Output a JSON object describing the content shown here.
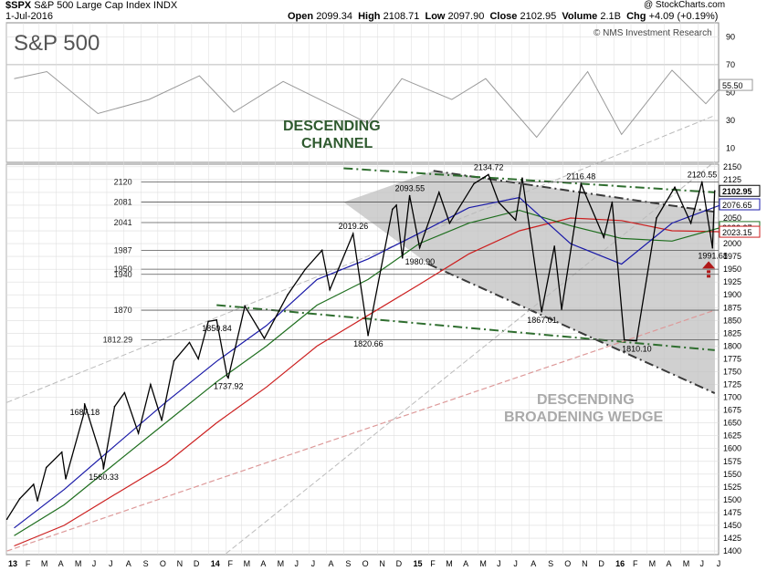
{
  "header": {
    "ticker": "$SPX",
    "name": "S&P 500 Large Cap Index",
    "exchange": "INDX",
    "date": "1-Jul-2016",
    "open_label": "Open",
    "open": "2099.34",
    "high_label": "High",
    "high": "2108.71",
    "low_label": "Low",
    "low": "2097.90",
    "close_label": "Close",
    "close": "2102.95",
    "volume_label": "Volume",
    "volume": "2.1B",
    "chg_label": "Chg",
    "chg": "+4.09 (+0.19%)",
    "watermark": "@ StockCharts.com",
    "credit": "© NMS Investment Research",
    "panel_title": "S&P 500"
  },
  "colors": {
    "price": "#000000",
    "ma_blue": "#1a1aa8",
    "ma_green": "#1e6e1e",
    "ma_red": "#cc1f1f",
    "channel": "#2f6e2f",
    "wedge_fill": "#c0c0c0",
    "wedge_edge": "#3a3a3a",
    "annotation": "#aaaaaa",
    "arrow": "#b01818",
    "grid": "#dddddd"
  },
  "chart_data": {
    "type": "line",
    "title": "S&P 500",
    "y_axis_price": {
      "ticks": [
        1400,
        1425,
        1450,
        1475,
        1500,
        1525,
        1550,
        1575,
        1600,
        1625,
        1650,
        1675,
        1700,
        1725,
        1750,
        1775,
        1800,
        1825,
        1850,
        1875,
        1900,
        1925,
        1950,
        1975,
        2000,
        2025,
        2050,
        2075,
        2100,
        2125,
        2150
      ],
      "ylim": [
        1393,
        2155
      ],
      "last_value_tags": [
        {
          "text": "2102.95",
          "value": 2102.95
        },
        {
          "text": "2076.65",
          "value": 2076.65
        },
        {
          "text": "2032.27",
          "value": 2032.27
        },
        {
          "text": "2023.15",
          "value": 2023.15
        }
      ]
    },
    "y_axis_rsi": {
      "ticks": [
        10,
        30,
        50,
        70,
        90
      ],
      "ylim": [
        0,
        100
      ],
      "last_value": "55.50"
    },
    "x_axis": {
      "labels": [
        "13",
        "F",
        "M",
        "A",
        "M",
        "J",
        "J",
        "A",
        "S",
        "O",
        "N",
        "D",
        "14",
        "F",
        "M",
        "A",
        "M",
        "J",
        "J",
        "A",
        "S",
        "O",
        "N",
        "D",
        "15",
        "F",
        "M",
        "A",
        "M",
        "J",
        "J",
        "A",
        "S",
        "O",
        "N",
        "D",
        "16",
        "F",
        "M",
        "A",
        "M",
        "J",
        "J"
      ],
      "start": "2013-01",
      "end": "2016-07"
    },
    "series": [
      {
        "points": [
          [
            "2013-01-02",
            1462
          ],
          [
            "2013-01-25",
            1502
          ],
          [
            "2013-02-19",
            1530
          ],
          [
            "2013-02-26",
            1498
          ],
          [
            "2013-03-14",
            1563
          ],
          [
            "2013-04-11",
            1593
          ],
          [
            "2013-04-18",
            1541
          ],
          [
            "2013-05-21",
            1669
          ],
          [
            "2013-05-22",
            1687.18
          ],
          [
            "2013-06-24",
            1573
          ],
          [
            "2013-06-25",
            1560.33
          ],
          [
            "2013-07-15",
            1682
          ],
          [
            "2013-08-02",
            1709
          ],
          [
            "2013-08-27",
            1630
          ],
          [
            "2013-09-18",
            1725
          ],
          [
            "2013-10-08",
            1655
          ],
          [
            "2013-10-30",
            1771
          ],
          [
            "2013-11-27",
            1807
          ],
          [
            "2013-12-13",
            1775
          ],
          [
            "2013-12-31",
            1848
          ],
          [
            "2014-01-15",
            1850.84
          ],
          [
            "2014-02-03",
            1741
          ],
          [
            "2014-02-05",
            1737.92
          ],
          [
            "2014-03-07",
            1878
          ],
          [
            "2014-04-11",
            1815
          ],
          [
            "2014-05-23",
            1900
          ],
          [
            "2014-06-24",
            1950
          ],
          [
            "2014-07-24",
            1987
          ],
          [
            "2014-08-07",
            1910
          ],
          [
            "2014-09-18",
            2019.26
          ],
          [
            "2014-10-15",
            1820.66
          ],
          [
            "2014-11-28",
            2067
          ],
          [
            "2014-12-05",
            2075
          ],
          [
            "2014-12-16",
            1972
          ],
          [
            "2014-12-29",
            2093.55
          ],
          [
            "2015-01-16",
            1992
          ],
          [
            "2015-02-20",
            2100
          ],
          [
            "2015-03-11",
            2040
          ],
          [
            "2015-04-24",
            2117
          ],
          [
            "2015-05-20",
            2134.72
          ],
          [
            "2015-06-08",
            2080
          ],
          [
            "2015-07-08",
            2046
          ],
          [
            "2015-07-20",
            2128
          ],
          [
            "2015-08-24",
            1867.01
          ],
          [
            "2015-09-16",
            1995
          ],
          [
            "2015-09-29",
            1872
          ],
          [
            "2015-11-03",
            2116.48
          ],
          [
            "2015-12-14",
            2012
          ],
          [
            "2015-12-29",
            2081
          ],
          [
            "2016-01-20",
            1812
          ],
          [
            "2016-02-11",
            1810.1
          ],
          [
            "2016-03-18",
            2050
          ],
          [
            "2016-04-20",
            2110
          ],
          [
            "2016-05-19",
            2040
          ],
          [
            "2016-06-08",
            2120.55
          ],
          [
            "2016-06-27",
            1991.68
          ],
          [
            "2016-07-01",
            2102.95
          ]
        ]
      },
      {
        "points": [
          [
            "2013-01",
            1445
          ],
          [
            "2013-04",
            1520
          ],
          [
            "2013-07",
            1605
          ],
          [
            "2013-10",
            1690
          ],
          [
            "2014-01",
            1770
          ],
          [
            "2014-04",
            1840
          ],
          [
            "2014-07",
            1930
          ],
          [
            "2014-10",
            1970
          ],
          [
            "2015-01",
            2020
          ],
          [
            "2015-04",
            2070
          ],
          [
            "2015-07",
            2090
          ],
          [
            "2015-10",
            2000
          ],
          [
            "2016-01",
            1960
          ],
          [
            "2016-04",
            2040
          ],
          [
            "2016-07",
            2076.65
          ]
        ]
      },
      {
        "points": [
          [
            "2013-01",
            1430
          ],
          [
            "2013-04",
            1490
          ],
          [
            "2013-07",
            1570
          ],
          [
            "2013-10",
            1650
          ],
          [
            "2014-01",
            1730
          ],
          [
            "2014-04",
            1800
          ],
          [
            "2014-07",
            1880
          ],
          [
            "2014-10",
            1930
          ],
          [
            "2015-01",
            2000
          ],
          [
            "2015-04",
            2040
          ],
          [
            "2015-07",
            2065
          ],
          [
            "2015-10",
            2035
          ],
          [
            "2016-01",
            2010
          ],
          [
            "2016-04",
            2005
          ],
          [
            "2016-07",
            2032.27
          ]
        ]
      },
      {
        "points": [
          [
            "2013-01",
            1410
          ],
          [
            "2013-04",
            1450
          ],
          [
            "2013-07",
            1510
          ],
          [
            "2013-10",
            1570
          ],
          [
            "2014-01",
            1650
          ],
          [
            "2014-04",
            1720
          ],
          [
            "2014-07",
            1800
          ],
          [
            "2014-10",
            1860
          ],
          [
            "2015-01",
            1920
          ],
          [
            "2015-04",
            1980
          ],
          [
            "2015-07",
            2025
          ],
          [
            "2015-10",
            2050
          ],
          [
            "2016-01",
            2045
          ],
          [
            "2016-04",
            2025
          ],
          [
            "2016-07",
            2023.15
          ]
        ]
      },
      {
        "points": [
          [
            "2013-01",
            60
          ],
          [
            "2013-03",
            65
          ],
          [
            "2013-06",
            35
          ],
          [
            "2013-09",
            45
          ],
          [
            "2013-12",
            62
          ],
          [
            "2014-02",
            36
          ],
          [
            "2014-05",
            58
          ],
          [
            "2014-08",
            40
          ],
          [
            "2014-10",
            28
          ],
          [
            "2014-12",
            60
          ],
          [
            "2015-03",
            45
          ],
          [
            "2015-05",
            60
          ],
          [
            "2015-08",
            18
          ],
          [
            "2015-11",
            65
          ],
          [
            "2016-01",
            20
          ],
          [
            "2016-04",
            66
          ],
          [
            "2016-06",
            42
          ],
          [
            "2016-07",
            55.5
          ]
        ]
      }
    ],
    "horizontal_levels": [
      {
        "text": "2120",
        "value": 2120
      },
      {
        "text": "2081",
        "value": 2081
      },
      {
        "text": "2041",
        "value": 2041
      },
      {
        "text": "1987",
        "value": 1987
      },
      {
        "text": "1950",
        "value": 1950
      },
      {
        "text": "1940",
        "value": 1940
      },
      {
        "text": "1870",
        "value": 1870
      },
      {
        "text": "1812.29",
        "value": 1812.29
      }
    ],
    "point_labels": [
      {
        "text": "1687.18",
        "date": "2013-05-22",
        "value": 1687.18
      },
      {
        "text": "1560.33",
        "date": "2013-06-25",
        "value": 1560.33
      },
      {
        "text": "1850.84",
        "date": "2014-01-15",
        "value": 1850.84
      },
      {
        "text": "1737.92",
        "date": "2014-02-05",
        "value": 1737.92
      },
      {
        "text": "2019.26",
        "date": "2014-09-18",
        "value": 2019.26
      },
      {
        "text": "1820.66",
        "date": "2014-10-15",
        "value": 1820.66
      },
      {
        "text": "2093.55",
        "date": "2014-12-29",
        "value": 2093.55
      },
      {
        "text": "1980.90",
        "date": "2015-01-16",
        "value": 1980.9
      },
      {
        "text": "2134.72",
        "date": "2015-05-20",
        "value": 2134.72
      },
      {
        "text": "1867.01",
        "date": "2015-08-24",
        "value": 1867.01
      },
      {
        "text": "2116.48",
        "date": "2015-11-03",
        "value": 2116.48
      },
      {
        "text": "1810.10",
        "date": "2016-02-11",
        "value": 1810.1
      },
      {
        "text": "2120.55",
        "date": "2016-06-08",
        "value": 2120.55
      },
      {
        "text": "1991.68",
        "date": "2016-06-27",
        "value": 1991.68
      }
    ],
    "annotations": [
      {
        "text": "DESCENDING CHANNEL",
        "lines": [
          "DESCENDING",
          "CHANNEL"
        ]
      },
      {
        "text": "DESCENDING BROADENING WEDGE",
        "lines": [
          "DESCENDING",
          "BROADENING WEDGE"
        ]
      }
    ],
    "grid": true
  }
}
